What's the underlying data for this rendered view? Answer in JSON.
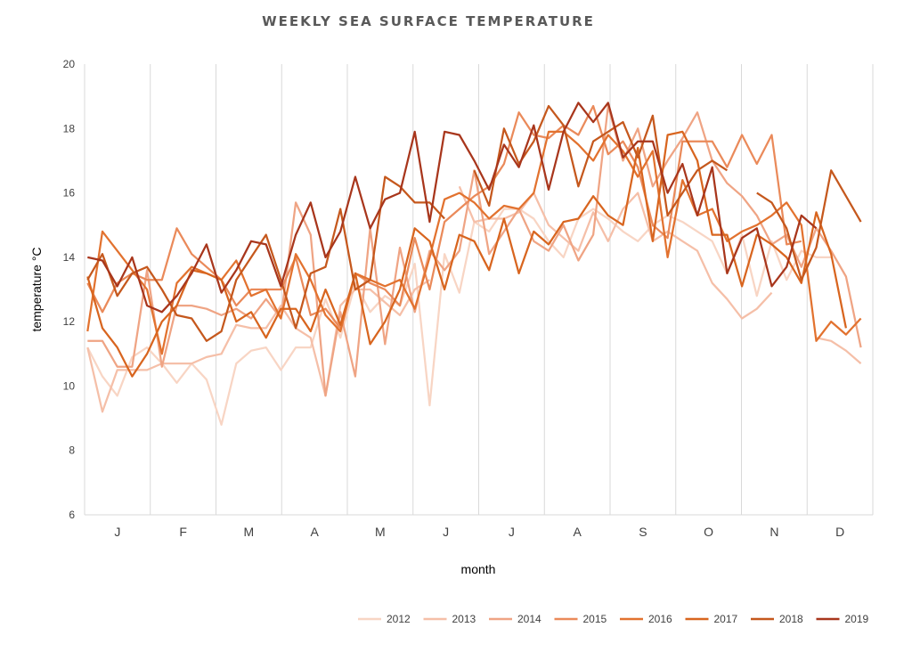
{
  "chart_data": {
    "type": "line",
    "title": "WEEKLY SEA SURFACE TEMPERATURE",
    "xlabel": "month",
    "ylabel": "temperature °C",
    "ylim": [
      6,
      20
    ],
    "yticks": [
      "6",
      "8",
      "10",
      "12",
      "14",
      "16",
      "18",
      "20"
    ],
    "xlim": [
      0,
      53
    ],
    "categories": [
      "J",
      "F",
      "M",
      "A",
      "M",
      "J",
      "J",
      "A",
      "S",
      "O",
      "N",
      "D"
    ],
    "gridlines": "vertical",
    "legend_position": "bottom-right",
    "x": [
      0.2,
      1.2,
      2.2,
      3.2,
      4.2,
      5.2,
      6.2,
      7.2,
      8.2,
      9.2,
      10.2,
      11.2,
      12.2,
      13.2,
      14.2,
      15.2,
      16.2,
      17.2,
      18.2,
      19.2,
      20.2,
      21.2,
      22.2,
      23.2,
      24.2,
      25.2,
      26.2,
      27.2,
      28.2,
      29.2,
      30.2,
      31.2,
      32.2,
      33.2,
      34.2,
      35.2,
      36.2,
      37.2,
      38.2,
      39.2,
      40.2,
      41.2,
      42.2,
      43.2,
      44.2,
      45.2,
      46.2,
      47.2,
      48.2,
      49.2,
      50.2,
      51.2,
      52.2
    ],
    "series": [
      {
        "name": "2012",
        "color": "#f8d5c4",
        "values": [
          11.2,
          10.3,
          9.7,
          10.9,
          11.2,
          10.7,
          10.1,
          10.7,
          10.2,
          8.8,
          10.7,
          11.1,
          11.2,
          10.5,
          11.2,
          11.2,
          12.7,
          11.5,
          13.2,
          12.3,
          12.8,
          12.5,
          13.8,
          9.4,
          14.1,
          12.9,
          15.1,
          14.8,
          15.5,
          15.5,
          15.2,
          14.5,
          14.0,
          15.2,
          15.5,
          15.2,
          14.8,
          14.5,
          15.0,
          15.3,
          15.1,
          14.8,
          14.5,
          13.5,
          14.7,
          12.8,
          14.5,
          13.3,
          14.2,
          14.0,
          14.0,
          null,
          null
        ]
      },
      {
        "name": "2013",
        "color": "#f5bfa8",
        "values": [
          11.2,
          9.2,
          10.5,
          10.5,
          10.5,
          10.7,
          10.7,
          10.7,
          10.9,
          11.0,
          11.9,
          11.8,
          11.8,
          12.5,
          11.8,
          11.5,
          9.7,
          12.5,
          13.0,
          13.0,
          12.6,
          12.2,
          13.0,
          13.3,
          null,
          16.2,
          15.1,
          15.2,
          15.2,
          15.4,
          16.0,
          15.0,
          14.6,
          14.2,
          15.4,
          14.5,
          15.5,
          16.0,
          14.5,
          14.8,
          14.5,
          14.2,
          13.2,
          12.7,
          12.1,
          12.4,
          12.9,
          null,
          null,
          11.5,
          11.4,
          11.1,
          10.7
        ]
      },
      {
        "name": "2014",
        "color": "#efa484",
        "values": [
          11.4,
          11.4,
          10.6,
          10.6,
          13.6,
          10.6,
          12.5,
          12.5,
          12.4,
          12.2,
          12.4,
          12.1,
          12.7,
          12.1,
          15.7,
          14.7,
          9.7,
          12.3,
          10.3,
          14.9,
          11.3,
          14.3,
          12.3,
          14.2,
          13.6,
          14.2,
          16.7,
          14.1,
          14.8,
          15.5,
          14.5,
          14.2,
          15.0,
          13.9,
          14.7,
          18.7,
          17.0,
          18.0,
          16.2,
          17.0,
          17.7,
          18.5,
          17.0,
          16.3,
          15.9,
          15.3,
          14.4,
          14.7,
          13.7,
          14.9,
          14.2,
          13.4,
          11.2
        ]
      },
      {
        "name": "2015",
        "color": "#ea8a5a",
        "values": [
          13.2,
          12.3,
          13.2,
          13.5,
          13.3,
          13.3,
          14.9,
          14.1,
          13.7,
          13.3,
          12.5,
          13.0,
          13.0,
          13.0,
          14.0,
          12.2,
          12.4,
          11.8,
          13.5,
          13.2,
          13.0,
          12.5,
          14.6,
          13.0,
          15.1,
          15.5,
          15.9,
          16.2,
          16.9,
          18.5,
          17.8,
          17.7,
          18.1,
          17.8,
          18.7,
          17.2,
          17.6,
          16.8,
          15.0,
          14.6,
          17.6,
          17.6,
          17.6,
          16.8,
          17.8,
          16.9,
          17.8,
          14.4,
          14.5,
          null,
          null,
          null,
          null
        ]
      },
      {
        "name": "2016",
        "color": "#e2722f",
        "values": [
          11.7,
          14.8,
          14.2,
          13.6,
          13.0,
          11.0,
          13.2,
          13.7,
          13.5,
          13.3,
          13.9,
          12.8,
          13.0,
          12.1,
          14.1,
          13.3,
          12.2,
          11.7,
          13.5,
          13.3,
          13.1,
          13.3,
          12.4,
          14.0,
          15.8,
          16.0,
          15.7,
          15.2,
          15.6,
          15.5,
          16.0,
          17.9,
          17.9,
          17.5,
          17.0,
          17.8,
          17.3,
          16.5,
          17.3,
          14.0,
          16.4,
          15.3,
          15.5,
          14.5,
          14.8,
          15.0,
          15.3,
          15.7,
          15.0,
          11.4,
          12.0,
          11.6,
          12.1
        ]
      },
      {
        "name": "2017",
        "color": "#d8651f",
        "values": [
          13.4,
          11.8,
          11.2,
          10.3,
          11.0,
          12.0,
          12.5,
          13.6,
          13.5,
          13.3,
          12.0,
          12.3,
          11.5,
          12.4,
          12.4,
          11.7,
          13.0,
          11.9,
          13.5,
          11.3,
          12.0,
          13.0,
          14.9,
          14.5,
          13.0,
          14.7,
          14.5,
          13.6,
          15.2,
          13.5,
          14.8,
          14.4,
          15.1,
          15.2,
          15.9,
          15.3,
          15.0,
          17.4,
          14.5,
          17.8,
          17.9,
          17.0,
          14.7,
          14.7,
          13.1,
          14.7,
          14.4,
          14.0,
          13.2,
          15.4,
          14.1,
          11.8,
          null
        ]
      },
      {
        "name": "2018",
        "color": "#c5581d",
        "values": [
          13.3,
          14.1,
          12.8,
          13.5,
          13.7,
          13.0,
          12.2,
          12.1,
          11.4,
          11.7,
          13.3,
          14.0,
          14.7,
          13.3,
          11.8,
          13.5,
          13.7,
          15.5,
          13.0,
          13.3,
          16.5,
          16.2,
          15.7,
          15.7,
          15.2,
          null,
          16.7,
          15.6,
          18.0,
          16.9,
          17.6,
          18.7,
          18.1,
          16.2,
          17.6,
          17.9,
          18.2,
          17.1,
          18.4,
          15.3,
          16.0,
          16.7,
          17.0,
          16.7,
          null,
          16.0,
          15.7,
          14.9,
          13.3,
          14.3,
          16.7,
          15.9,
          15.1
        ]
      },
      {
        "name": "2019",
        "color": "#a8361c",
        "values": [
          14.0,
          13.9,
          13.1,
          14.0,
          12.5,
          12.3,
          12.8,
          13.5,
          14.4,
          12.9,
          13.6,
          14.5,
          14.4,
          13.1,
          14.7,
          15.7,
          14.0,
          14.8,
          16.5,
          14.9,
          15.8,
          16.0,
          17.9,
          15.1,
          17.9,
          17.8,
          17.0,
          16.1,
          17.5,
          16.8,
          18.1,
          16.1,
          17.9,
          18.8,
          18.2,
          18.8,
          17.1,
          17.6,
          17.6,
          16.0,
          16.9,
          15.3,
          16.8,
          13.5,
          14.6,
          14.9,
          13.1,
          13.7,
          15.3,
          14.9,
          null,
          null,
          null
        ]
      }
    ]
  }
}
